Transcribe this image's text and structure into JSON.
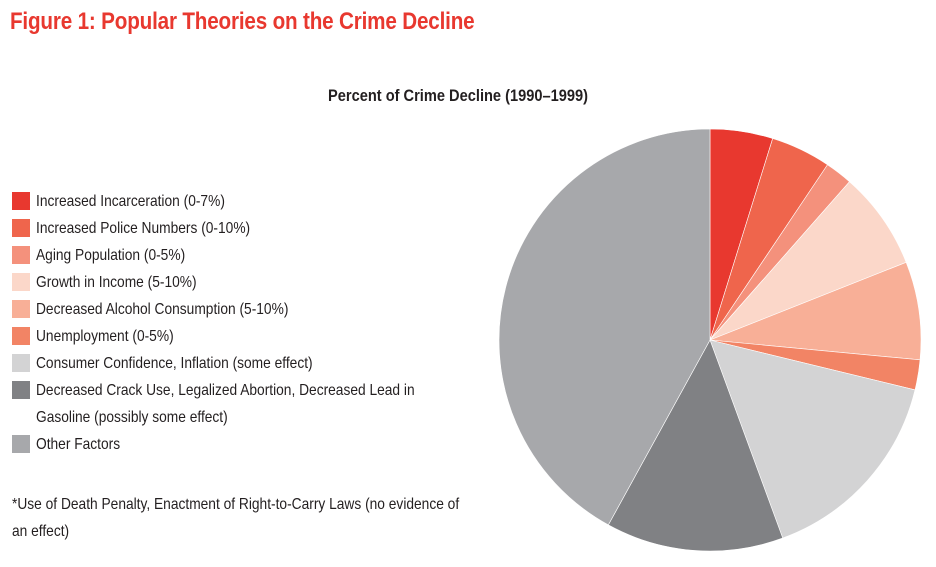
{
  "figure_title": "Figure 1: Popular Theories on the Crime Decline",
  "chart_data": {
    "type": "pie",
    "title": "Percent of Crime Decline (1990–1999)",
    "slices": [
      {
        "label": "Increased Incarceration (0-7%)",
        "value": 4.8,
        "color": "#e8382f"
      },
      {
        "label": "Increased Police Numbers (0-10%)",
        "value": 4.6,
        "color": "#ef654c"
      },
      {
        "label": "Aging Population (0-5%)",
        "value": 2.1,
        "color": "#f4917c"
      },
      {
        "label": "Growth in Income (5-10%)",
        "value": 7.5,
        "color": "#fbd7c9"
      },
      {
        "label": "Decreased Alcohol Consumption (5-10%)",
        "value": 7.5,
        "color": "#f8af97"
      },
      {
        "label": "Unemployment (0-5%)",
        "value": 2.3,
        "color": "#f28465"
      },
      {
        "label": "Consumer Confidence, Inflation (some effect)",
        "value": 15.6,
        "color": "#d3d3d4"
      },
      {
        "label": "Decreased Crack Use, Legalized Abortion, Decreased Lead in Gasoline (possibly some effect)",
        "value": 13.6,
        "color": "#808184"
      },
      {
        "label": "Other Factors",
        "value": 42.0,
        "color": "#a7a8ab"
      }
    ],
    "legend_position": "left"
  },
  "footnote": "*Use of Death Penalty, Enactment of Right-to-Carry Laws (no evidence of an effect)"
}
